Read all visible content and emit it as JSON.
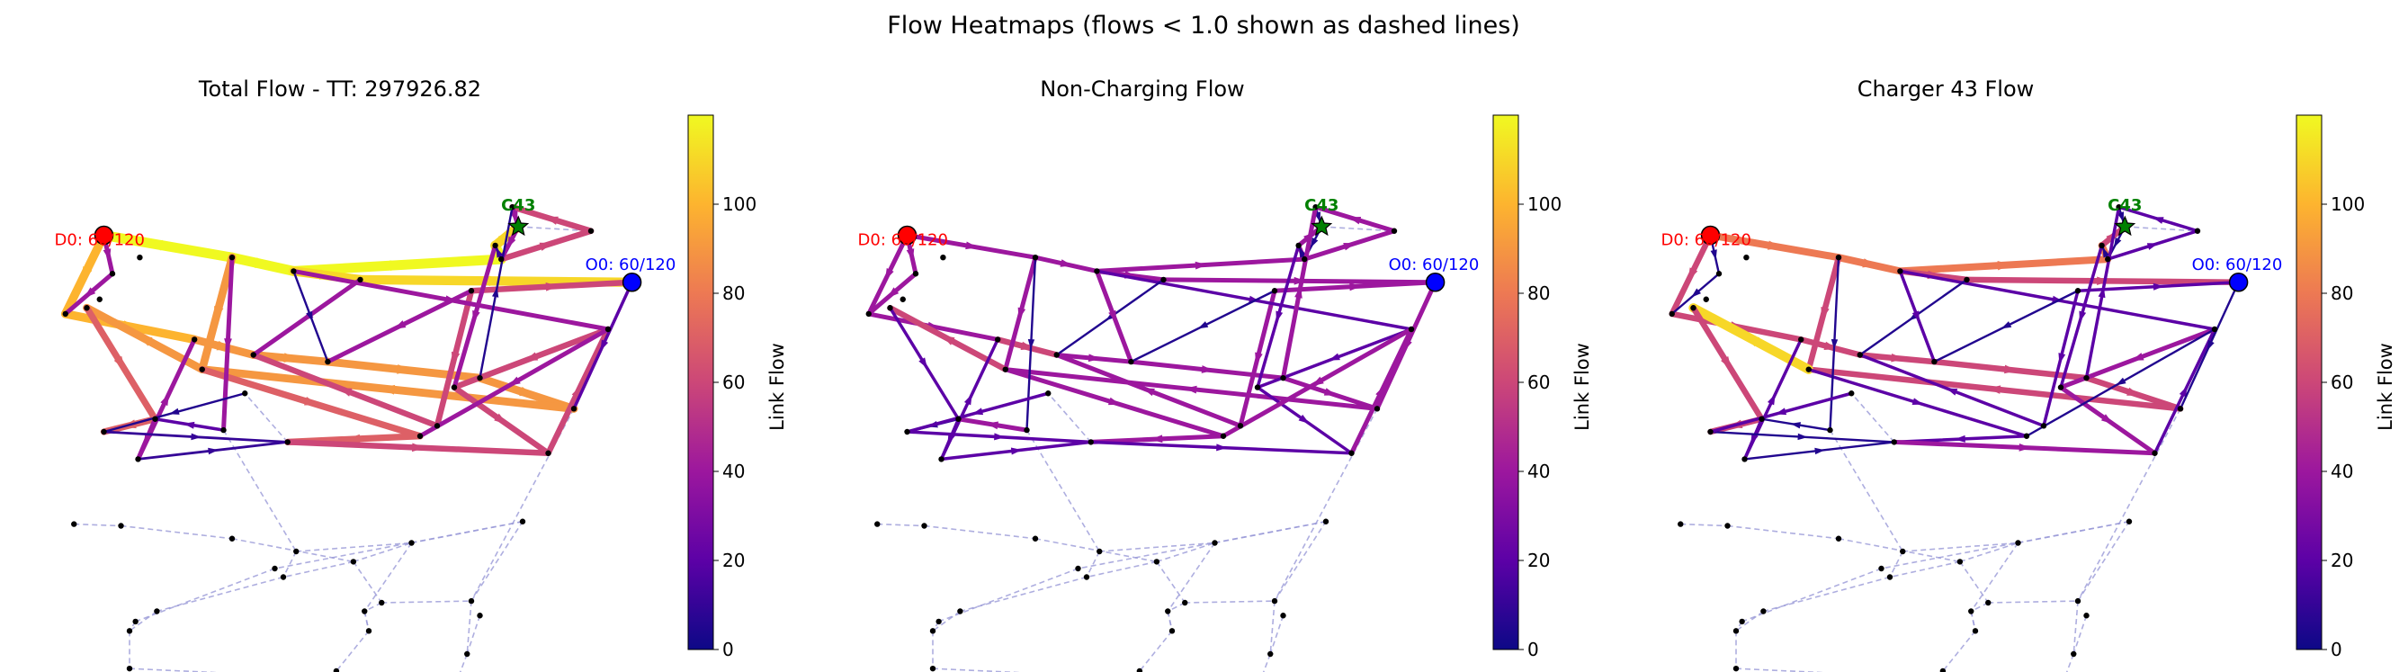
{
  "figure": {
    "suptitle": "Flow Heatmaps (flows < 1.0 shown as dashed lines)"
  },
  "colormap": {
    "name": "plasma",
    "stops": [
      "#0d0887",
      "#5c01a6",
      "#9c179e",
      "#cc4778",
      "#ed7953",
      "#fdb42f",
      "#f0f921"
    ],
    "vmin": 0,
    "vmax": 120
  },
  "colors": {
    "node": "#000000",
    "dest_fill": "#ff0000",
    "dest_label": "#ff0000",
    "origin_fill": "#0000ff",
    "origin_label": "#0000ff",
    "charger_fill": "#008000",
    "charger_label": "#008000",
    "dashed_edge": "#9a9ad8",
    "arrow_dark": "#0d0887"
  },
  "chart_data": [
    {
      "type": "network-heatmap",
      "title": "Total Flow - TT: 297926.82",
      "colorbar_label": "Link Flow",
      "colorbar_ticks": [
        0,
        20,
        40,
        60,
        80,
        100
      ],
      "markers": {
        "destination": "D0: 60/120",
        "origin": "O0: 60/120",
        "charger": "C43"
      },
      "edge_flows": [
        120,
        120,
        120,
        120,
        110,
        110,
        110,
        100,
        100,
        90,
        90,
        90,
        90,
        90,
        90,
        90,
        70,
        70,
        70,
        70,
        60,
        60,
        60,
        60,
        60,
        60,
        60,
        60,
        60,
        40,
        40,
        40,
        40,
        40,
        40,
        40,
        40,
        40,
        40,
        40,
        40,
        20,
        20,
        10,
        10,
        10,
        5,
        5,
        5
      ]
    },
    {
      "type": "network-heatmap",
      "title": "Non-Charging Flow",
      "colorbar_label": "Link Flow",
      "colorbar_ticks": [
        0,
        20,
        40,
        60,
        80,
        100
      ],
      "markers": {
        "destination": "D0: 60/120",
        "origin": "O0: 60/120",
        "charger": "C43"
      },
      "edge_flows": [
        40,
        40,
        40,
        40,
        40,
        40,
        40,
        40,
        40,
        60,
        40,
        40,
        40,
        40,
        40,
        60,
        20,
        10,
        40,
        40,
        20,
        40,
        40,
        20,
        20,
        40,
        40,
        40,
        40,
        5,
        20,
        40,
        20,
        20,
        40,
        40,
        5,
        5,
        5,
        20,
        5,
        40,
        40,
        5,
        20,
        20,
        40,
        40,
        20
      ]
    },
    {
      "type": "network-heatmap",
      "title": "Charger 43 Flow",
      "colorbar_label": "Link Flow",
      "colorbar_ticks": [
        0,
        20,
        40,
        60,
        80,
        100
      ],
      "markers": {
        "destination": "D0: 60/120",
        "origin": "O0: 60/120",
        "charger": "C43"
      },
      "edge_flows": [
        80,
        80,
        80,
        80,
        60,
        60,
        60,
        60,
        60,
        60,
        60,
        60,
        60,
        60,
        60,
        110,
        60,
        60,
        20,
        20,
        40,
        20,
        20,
        40,
        40,
        20,
        20,
        20,
        20,
        5,
        20,
        5,
        20,
        20,
        5,
        5,
        5,
        5,
        5,
        20,
        5,
        5,
        5,
        5,
        5,
        5,
        20,
        20,
        20
      ]
    }
  ]
}
